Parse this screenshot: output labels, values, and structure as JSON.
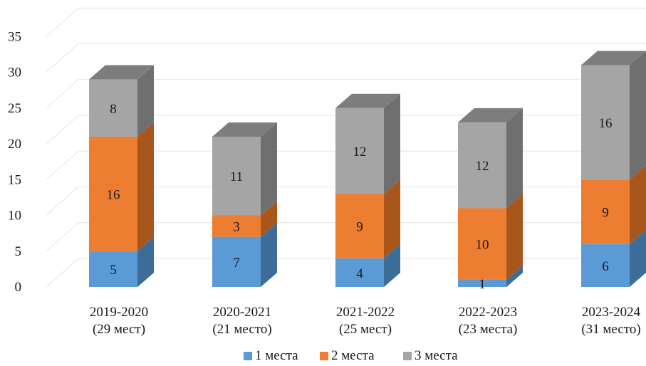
{
  "chart_data": {
    "type": "bar",
    "stacked": true,
    "style": "3d",
    "categories": [
      [
        "2019-2020",
        "(29 мест)"
      ],
      [
        "2020-2021",
        "(21 место)"
      ],
      [
        "2021-2022",
        "(25 мест)"
      ],
      [
        "2022-2023",
        "(23 места)"
      ],
      [
        "2023-2024",
        "(31 место)"
      ]
    ],
    "series": [
      {
        "name": "1 места",
        "values": [
          5,
          7,
          4,
          1,
          6
        ],
        "color": "#5b9bd5",
        "side": "#3c6d98",
        "top": "#4a84bb"
      },
      {
        "name": "2 места",
        "values": [
          16,
          3,
          9,
          10,
          9
        ],
        "color": "#ed7d31",
        "side": "#a9561d",
        "top": "#c96a28"
      },
      {
        "name": "3 места",
        "values": [
          8,
          11,
          12,
          12,
          16
        ],
        "color": "#a5a5a5",
        "side": "#6f6f6f",
        "top": "#7d7d7d"
      }
    ],
    "yticks": [
      "0",
      "5",
      "10",
      "15",
      "20",
      "25",
      "30",
      "35"
    ],
    "ylim": [
      0,
      35
    ],
    "grid": true,
    "legend": "bottom",
    "title": "",
    "xlabel": "",
    "ylabel": ""
  }
}
